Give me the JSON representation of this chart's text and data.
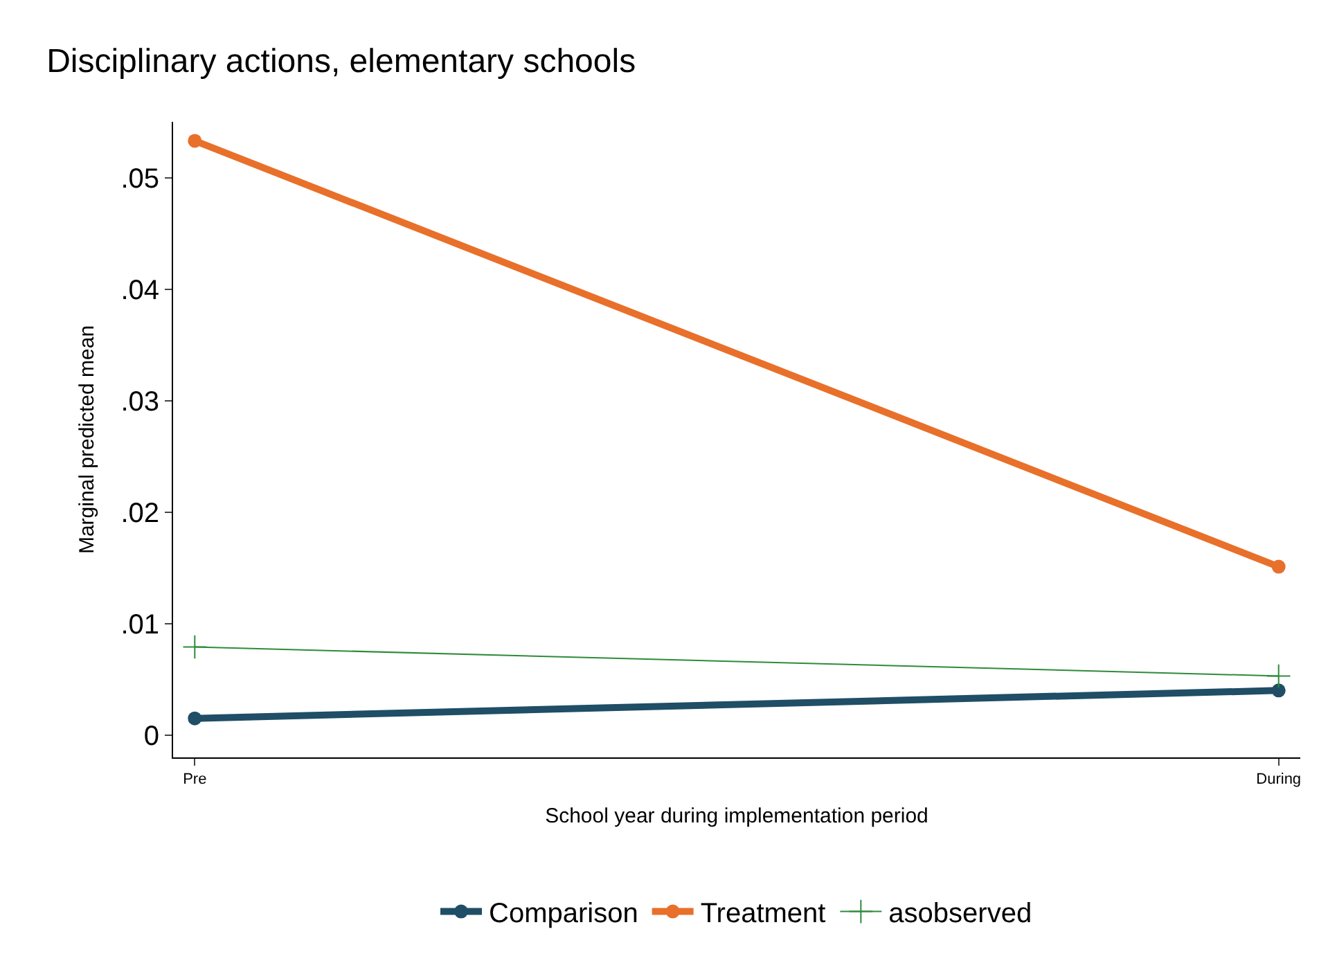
{
  "chart_data": {
    "type": "line",
    "title": "Disciplinary actions, elementary schools",
    "xlabel": "School year during implementation period",
    "ylabel": "Marginal predicted mean",
    "categories": [
      "Pre",
      "During"
    ],
    "series": [
      {
        "name": "Comparison",
        "color": "#1f4e66",
        "values": [
          0.0015,
          0.004
        ],
        "marker": "circle"
      },
      {
        "name": "Treatment",
        "color": "#e8702a",
        "values": [
          0.0533,
          0.0151
        ],
        "marker": "circle"
      },
      {
        "name": "asobserved",
        "color": "#2e8b3a",
        "values": [
          0.0079,
          0.0053
        ],
        "marker": "cross"
      }
    ],
    "ylim": [
      -0.002,
      0.055
    ],
    "yticks": [
      0,
      {
        "value": 0.01,
        "label": ".01"
      },
      {
        "value": 0.02,
        "label": ".02"
      },
      {
        "value": 0.03,
        "label": ".03"
      },
      {
        "value": 0.04,
        "label": ".04"
      },
      {
        "value": 0.05,
        "label": ".05"
      }
    ],
    "legend": "bottom"
  }
}
